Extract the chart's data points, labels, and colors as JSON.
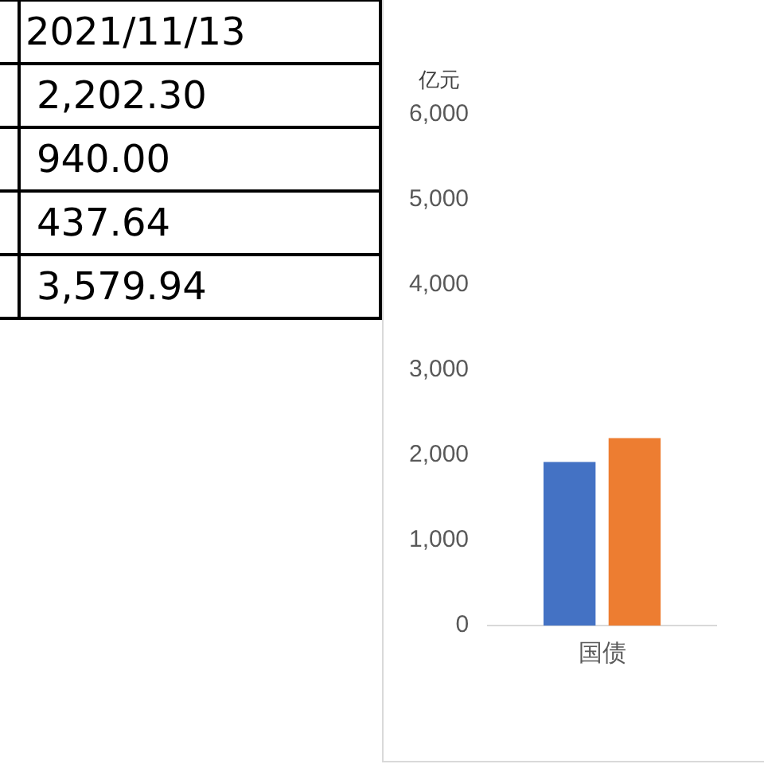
{
  "chart_data": [
    {
      "type": "other",
      "annotations": [
        "2021/11/13",
        "2,202.30",
        "940.00",
        "437.64",
        "3,579.94"
      ]
    },
    {
      "type": "bar",
      "ylabel": "亿元",
      "categories": [
        "国债"
      ],
      "series": [
        {
          "color": "#4472c4",
          "values": [
            1920
          ]
        },
        {
          "color": "#ed7d31",
          "values": [
            2200
          ]
        }
      ],
      "ylim": [
        0,
        6000
      ],
      "yticks": [
        0,
        {
          "value": 1000,
          "label": "1,000"
        },
        {
          "value": 2000,
          "label": "2,000"
        },
        {
          "value": 3000,
          "label": "3,000"
        },
        {
          "value": 4000,
          "label": "4,000"
        },
        {
          "value": 5000,
          "label": "5,000"
        },
        {
          "value": 6000,
          "label": "6,000"
        }
      ],
      "grid": false,
      "legend": false
    }
  ]
}
